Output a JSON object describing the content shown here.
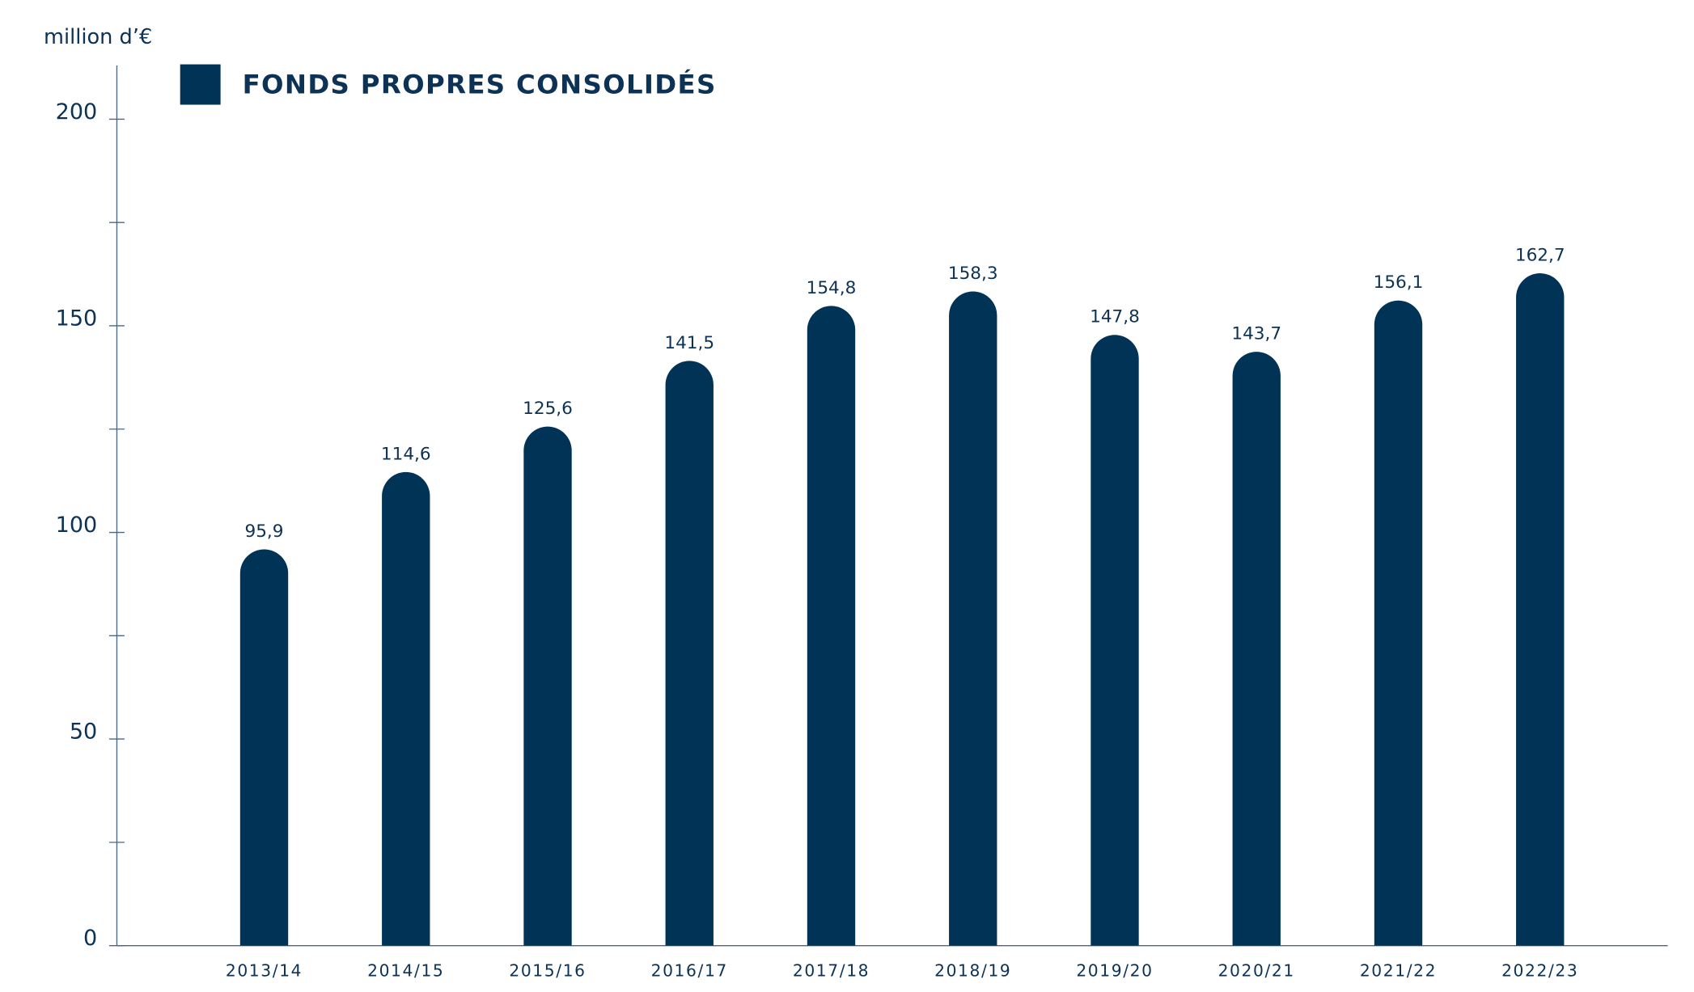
{
  "chart_data": {
    "type": "bar",
    "title": "FONDS PROPRES CONSOLIDÉS",
    "y_axis_label": "million d’€",
    "categories": [
      "2013/14",
      "2014/15",
      "2015/16",
      "2016/17",
      "2017/18",
      "2018/19",
      "2019/20",
      "2020/21",
      "2021/22",
      "2022/23"
    ],
    "series": [
      {
        "name": "FONDS PROPRES CONSOLIDÉS",
        "color": "#003356",
        "values": [
          95.9,
          114.6,
          125.6,
          141.5,
          154.8,
          158.3,
          147.8,
          143.7,
          156.1,
          162.7
        ],
        "value_labels": [
          "95,9",
          "114,6",
          "125,6",
          "141,5",
          "154,8",
          "158,3",
          "147,8",
          "143,7",
          "156,1",
          "162,7"
        ]
      }
    ],
    "ylim": [
      0,
      213
    ],
    "yticks": [
      0,
      50,
      100,
      150,
      200
    ],
    "yminorticks": [
      25,
      75,
      125,
      175
    ],
    "legend": "top-left"
  }
}
